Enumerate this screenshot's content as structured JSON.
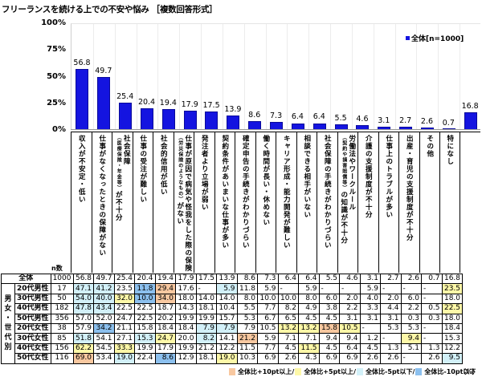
{
  "title": "フリーランスを続ける上での不安や悩み ［複数回答形式］",
  "legend": {
    "label": "全体[n=1000]",
    "color": "#1414e0"
  },
  "y_ticks": [
    "100%",
    "75%",
    "50%",
    "25%",
    "0%"
  ],
  "n_header": "n数",
  "chart_data": {
    "type": "bar",
    "title": "フリーランスを続ける上での不安や悩み ［複数回答形式］",
    "xlabel": "",
    "ylabel": "%",
    "ylim": [
      0,
      100
    ],
    "yticks": [
      0,
      25,
      50,
      75,
      100
    ],
    "grid": true,
    "legend_position": "top-right",
    "categories": [
      "収入が不安定・低い",
      "仕事がなくなったときの保障がない",
      "社会保障（医療保険・年金等）が不十分",
      "仕事の受注が難しい",
      "社会的信用が低い",
      "仕事が原因で病気や怪我をした際の保険（労災保険のようなもの）がない",
      "発注者より立場が弱い",
      "契約条件があいまいな仕事が多い",
      "確定申告の手続きがわかりづらい",
      "働く時間が長い・休めない",
      "キャリア形成・能力開発が難しい",
      "相談できる相手がいない",
      "社会保障の手続きがわかりづらい",
      "労働法やワークルール（契約や損害賠償等）の知識が不十分",
      "介護の支援制度が不十分",
      "仕事上のトラブルが多い",
      "出産・育児の支援制度が不十分",
      "その他",
      "特になし"
    ],
    "series": [
      {
        "name": "全体[n=1000]",
        "values": [
          56.8,
          49.7,
          25.4,
          20.4,
          19.4,
          17.9,
          17.5,
          13.9,
          8.6,
          7.3,
          6.4,
          6.4,
          5.5,
          4.6,
          3.1,
          2.7,
          2.6,
          0.7,
          16.8
        ]
      }
    ]
  },
  "columns": [
    {
      "main": "収入が不安定・低い",
      "sub": ""
    },
    {
      "main": "仕事がなくなったときの保障がない",
      "sub": ""
    },
    {
      "main": "社会保障",
      "sub": "（医療保険・年金等）",
      "tail": "が不十分"
    },
    {
      "main": "仕事の受注が難しい",
      "sub": ""
    },
    {
      "main": "社会的信用が低い",
      "sub": ""
    },
    {
      "main": "仕事が原因で病気や怪我をした際の保険",
      "sub": "（労災保険のようなもの）",
      "tail": "がない"
    },
    {
      "main": "発注者より立場が弱い",
      "sub": ""
    },
    {
      "main": "契約条件があいまいな仕事が多い",
      "sub": ""
    },
    {
      "main": "確定申告の手続きがわかりづらい",
      "sub": ""
    },
    {
      "main": "働く時間が長い・休めない",
      "sub": ""
    },
    {
      "main": "キャリア形成・能力開発が難しい",
      "sub": ""
    },
    {
      "main": "相談できる相手がいない",
      "sub": ""
    },
    {
      "main": "社会保障の手続きがわかりづらい",
      "sub": ""
    },
    {
      "main": "労働法やワークルール",
      "sub": "（契約や損害賠償等）",
      "tail": "の知識が不十分"
    },
    {
      "main": "介護の支援制度が不十分",
      "sub": ""
    },
    {
      "main": "仕事上のトラブルが多い",
      "sub": ""
    },
    {
      "main": "出産・育児の支援制度が不十分",
      "sub": ""
    },
    {
      "main": "その他",
      "sub": ""
    },
    {
      "main": "特になし",
      "sub": ""
    }
  ],
  "table": {
    "group_label": "男女・世代別",
    "total_row": {
      "label": "全体",
      "n": "1000",
      "values": [
        "56.8",
        "49.7",
        "25.4",
        "20.4",
        "19.4",
        "17.9",
        "17.5",
        "13.9",
        "8.6",
        "7.3",
        "6.4",
        "6.4",
        "5.5",
        "4.6",
        "3.1",
        "2.7",
        "2.6",
        "0.7",
        "16.8"
      ]
    },
    "rows": [
      {
        "label": "20代男性",
        "n": "17",
        "values": [
          "47.1",
          "41.2",
          "23.5",
          "11.8",
          "29.4",
          "17.6",
          "-",
          "5.9",
          "11.8",
          "5.9",
          "-",
          "5.9",
          "-",
          "-",
          "5.9",
          "-",
          "-",
          "-",
          "23.5"
        ],
        "hl": [
          "c",
          "c",
          "",
          "b",
          "o",
          "",
          "",
          "c",
          "",
          "",
          "",
          "",
          "",
          "",
          "",
          "",
          "",
          "",
          "y"
        ]
      },
      {
        "label": "30代男性",
        "n": "50",
        "values": [
          "54.0",
          "40.0",
          "32.0",
          "10.0",
          "34.0",
          "18.0",
          "14.0",
          "14.0",
          "8.0",
          "10.0",
          "10.0",
          "8.0",
          "6.0",
          "2.0",
          "4.0",
          "2.0",
          "6.0",
          "-",
          "18.0"
        ],
        "hl": [
          "c",
          "c",
          "y",
          "b",
          "o",
          "",
          "",
          "",
          "",
          "",
          "",
          "",
          "",
          "",
          "",
          "",
          "",
          "",
          ""
        ]
      },
      {
        "label": "40代男性",
        "n": "182",
        "values": [
          "47.8",
          "43.4",
          "22.5",
          "22.5",
          "18.7",
          "14.3",
          "18.1",
          "10.4",
          "5.5",
          "7.7",
          "8.2",
          "4.9",
          "3.8",
          "2.2",
          "3.3",
          "4.4",
          "2.2",
          "0.5",
          "22.5"
        ],
        "hl": [
          "c",
          "c",
          "",
          "",
          "",
          "",
          "",
          "",
          "",
          "",
          "",
          "",
          "",
          "",
          "",
          "",
          "",
          "",
          "y"
        ]
      },
      {
        "label": "50代男性",
        "n": "356",
        "values": [
          "57.0",
          "52.0",
          "24.7",
          "22.5",
          "20.2",
          "19.9",
          "19.9",
          "15.7",
          "5.3",
          "6.7",
          "6.5",
          "4.5",
          "4.5",
          "3.1",
          "3.1",
          "3.1",
          "0.3",
          "0.3",
          "18.0"
        ],
        "hl": [
          "",
          "",
          "",
          "",
          "",
          "",
          "",
          "",
          "",
          "",
          "",
          "",
          "",
          "",
          "",
          "",
          "",
          "",
          ""
        ]
      },
      {
        "label": "20代女性",
        "n": "38",
        "values": [
          "57.9",
          "34.2",
          "21.1",
          "15.8",
          "18.4",
          "18.4",
          "7.9",
          "7.9",
          "7.9",
          "10.5",
          "13.2",
          "13.2",
          "15.8",
          "10.5",
          "-",
          "5.3",
          "5.3",
          "-",
          "18.4"
        ],
        "hl": [
          "",
          "b",
          "",
          "",
          "",
          "",
          "c",
          "c",
          "",
          "",
          "y",
          "y",
          "o",
          "y",
          "",
          "",
          "",
          "",
          ""
        ]
      },
      {
        "label": "30代女性",
        "n": "85",
        "values": [
          "51.8",
          "54.1",
          "27.1",
          "15.3",
          "24.7",
          "20.0",
          "8.2",
          "14.1",
          "21.2",
          "5.9",
          "7.1",
          "7.1",
          "9.4",
          "9.4",
          "1.2",
          "-",
          "9.4",
          "-",
          "15.3"
        ],
        "hl": [
          "c",
          "",
          "",
          "c",
          "y",
          "",
          "c",
          "",
          "o",
          "",
          "",
          "",
          "",
          "",
          "",
          "",
          "y",
          "",
          ""
        ]
      },
      {
        "label": "40代女性",
        "n": "156",
        "values": [
          "62.2",
          "54.5",
          "33.3",
          "19.9",
          "17.9",
          "19.9",
          "21.2",
          "12.2",
          "11.5",
          "7.7",
          "4.5",
          "11.5",
          "4.5",
          "6.4",
          "4.5",
          "1.3",
          "5.1",
          "1.3",
          "12.2"
        ],
        "hl": [
          "y",
          "",
          "y",
          "",
          "",
          "",
          "",
          "",
          "",
          "",
          "",
          "y",
          "",
          "",
          "",
          "",
          "",
          "",
          ""
        ]
      },
      {
        "label": "50代女性",
        "n": "116",
        "values": [
          "69.0",
          "53.4",
          "19.0",
          "22.4",
          "8.6",
          "12.9",
          "18.1",
          "19.0",
          "10.3",
          "6.9",
          "2.6",
          "4.3",
          "6.9",
          "6.9",
          "2.6",
          "2.6",
          "-",
          "2.6",
          "9.5"
        ],
        "hl": [
          "o",
          "",
          "c",
          "",
          "b",
          "",
          "",
          "y",
          "",
          "",
          "",
          "",
          "",
          "",
          "",
          "",
          "",
          "",
          "c"
        ]
      }
    ]
  },
  "footnote": {
    "items": [
      {
        "label": "全体比+10pt以上/",
        "color": "#f8c8a0"
      },
      {
        "label": "全体比+5pt以上/",
        "color": "#fdf8a8"
      },
      {
        "label": "全体比-5pt以下/",
        "color": "#d2f0f8"
      },
      {
        "label": "全体比-10pt以下",
        "color": "#8cc0ee"
      }
    ],
    "unit": "（%）"
  }
}
